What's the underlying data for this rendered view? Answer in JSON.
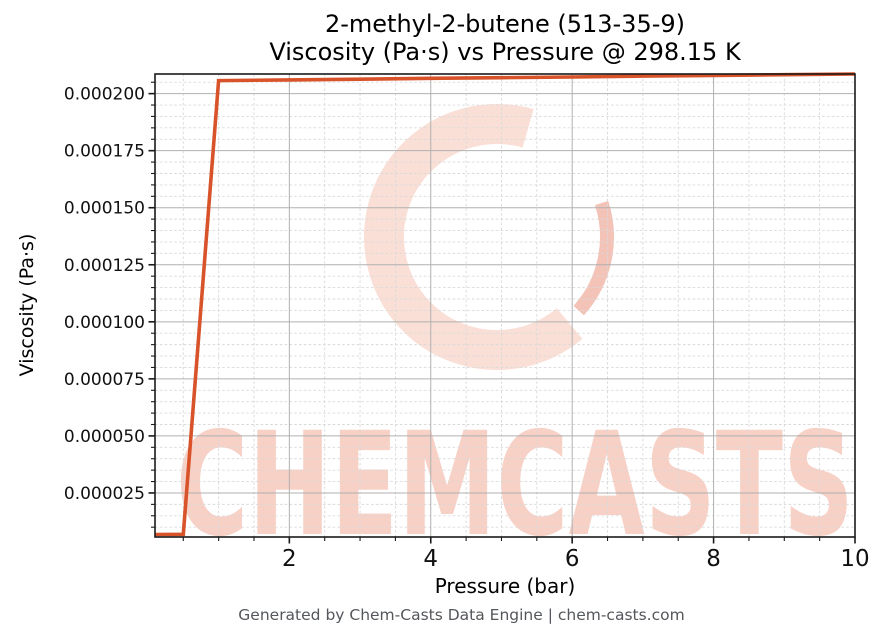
{
  "title": {
    "line1": "2-methyl-2-butene (513-35-9)",
    "line2": "Viscosity (Pa·s) vs Pressure @ 298.15 K"
  },
  "footer": {
    "text": "Generated by Chem-Casts Data Engine | chem-casts.com",
    "color": "#54575b"
  },
  "watermark": {
    "text": "CHEMCASTS",
    "text_color": "#f7d0c6",
    "logo_color": "#fadfd7",
    "logo_accent_color": "#f3c3b8"
  },
  "chart_data": {
    "type": "line",
    "title_line1": "2-methyl-2-butene (513-35-9)",
    "title_line2": "Viscosity (Pa·s) vs Pressure @ 298.15 K",
    "xlabel": "Pressure (bar)",
    "ylabel": "Viscosity (Pa·s)",
    "xlim": [
      0.1,
      10
    ],
    "ylim": [
      5.7e-06,
      0.0002086
    ],
    "x_ticks": [
      {
        "value": 2,
        "label": "2"
      },
      {
        "value": 4,
        "label": "4"
      },
      {
        "value": 6,
        "label": "6"
      },
      {
        "value": 8,
        "label": "8"
      },
      {
        "value": 10,
        "label": "10"
      }
    ],
    "x_minor_step": 0.5,
    "y_ticks": [
      {
        "value": 2.5e-05,
        "label": "0.000025"
      },
      {
        "value": 5e-05,
        "label": "0.000050"
      },
      {
        "value": 7.5e-05,
        "label": "0.000075"
      },
      {
        "value": 0.0001,
        "label": "0.000100"
      },
      {
        "value": 0.000125,
        "label": "0.000125"
      },
      {
        "value": 0.00015,
        "label": "0.000150"
      },
      {
        "value": 0.000175,
        "label": "0.000175"
      },
      {
        "value": 0.0002,
        "label": "0.000200"
      }
    ],
    "y_minor_step": 5e-06,
    "grid": {
      "major": true,
      "minor": true,
      "major_color": "#b0b0b0",
      "minor_color": "#d9d9d9"
    },
    "legend": "none",
    "line_color": "#d9532a",
    "line_width": 3.6,
    "series": [
      {
        "name": "Viscosity (Pa·s)",
        "x": [
          0.1,
          0.5,
          1.0,
          2.0,
          3.0,
          4.0,
          5.0,
          6.0,
          7.0,
          8.0,
          9.0,
          10.0
        ],
        "y": [
          6.8e-06,
          6.9e-06,
          0.0002057,
          0.000206,
          0.0002063,
          0.0002067,
          0.000207,
          0.0002073,
          0.0002077,
          0.000208,
          0.0002083,
          0.0002086
        ]
      }
    ]
  }
}
